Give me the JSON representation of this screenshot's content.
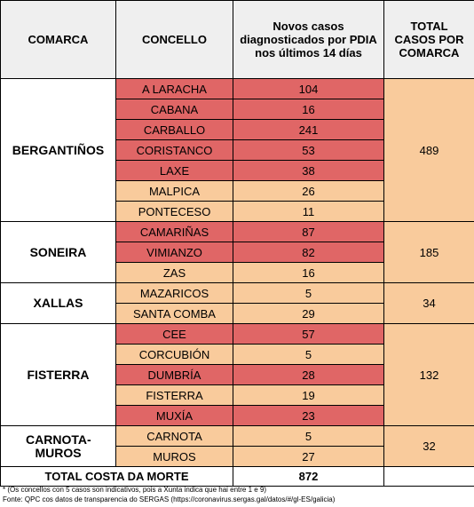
{
  "headers": {
    "comarca": "COMARCA",
    "concello": "CONCELLO",
    "cases": "Novos casos diagnosticados por PDIA nos últimos 14 días",
    "total": "TOTAL CASOS POR COMARCA"
  },
  "groups": [
    {
      "name": "BERGANTIÑOS",
      "total": "489",
      "rows": [
        {
          "concello": "A LARACHA",
          "cases": "104",
          "level": "high"
        },
        {
          "concello": "CABANA",
          "cases": "16",
          "level": "high"
        },
        {
          "concello": "CARBALLO",
          "cases": "241",
          "level": "high"
        },
        {
          "concello": "CORISTANCO",
          "cases": "53",
          "level": "high"
        },
        {
          "concello": "LAXE",
          "cases": "38",
          "level": "high"
        },
        {
          "concello": "MALPICA",
          "cases": "26",
          "level": "low"
        },
        {
          "concello": "PONTECESO",
          "cases": "11",
          "level": "low"
        }
      ]
    },
    {
      "name": "SONEIRA",
      "total": "185",
      "rows": [
        {
          "concello": "CAMARIÑAS",
          "cases": "87",
          "level": "high"
        },
        {
          "concello": "VIMIANZO",
          "cases": "82",
          "level": "high"
        },
        {
          "concello": "ZAS",
          "cases": "16",
          "level": "low"
        }
      ]
    },
    {
      "name": "XALLAS",
      "total": "34",
      "rows": [
        {
          "concello": "MAZARICOS",
          "cases": "5",
          "level": "low"
        },
        {
          "concello": "SANTA COMBA",
          "cases": "29",
          "level": "low"
        }
      ]
    },
    {
      "name": "FISTERRA",
      "total": "132",
      "rows": [
        {
          "concello": "CEE",
          "cases": "57",
          "level": "high"
        },
        {
          "concello": "CORCUBIÓN",
          "cases": "5",
          "level": "low"
        },
        {
          "concello": "DUMBRÍA",
          "cases": "28",
          "level": "high"
        },
        {
          "concello": "FISTERRA",
          "cases": "19",
          "level": "low"
        },
        {
          "concello": "MUXÍA",
          "cases": "23",
          "level": "high"
        }
      ]
    },
    {
      "name": "CARNOTA-MUROS",
      "total": "32",
      "rows": [
        {
          "concello": "CARNOTA",
          "cases": "5",
          "level": "low"
        },
        {
          "concello": "MUROS",
          "cases": "27",
          "level": "low"
        }
      ]
    }
  ],
  "grand_total": {
    "label": "TOTAL COSTA DA MORTE",
    "value": "872"
  },
  "footnotes": [
    "* (Os concellos con 5 casos son indicativos, pois a Xunta indica que hai entre 1 e 9)",
    "Fonte: QPC cos datos de transparencia do SERGAS (https://coronavirus.sergas.gal/datos/#/gl-ES/galicia)"
  ],
  "colors": {
    "high": "#e06666",
    "low": "#f9cb9c",
    "header": "#efefef"
  }
}
